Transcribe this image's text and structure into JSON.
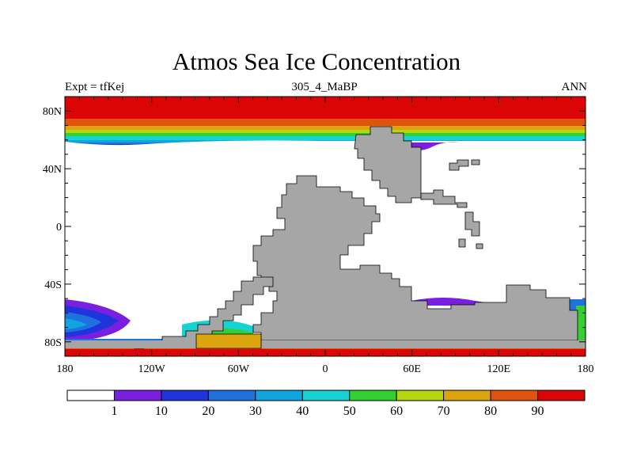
{
  "title": "Atmos Sea Ice Concentration",
  "subtitle": "305_4_MaBP",
  "experiment": "Expt = tfKej",
  "period": "ANN",
  "map": {
    "lon_range": [
      -180,
      180
    ],
    "lat_range": [
      -90,
      90
    ],
    "lon_ticks": [
      {
        "value": -180,
        "label": "180"
      },
      {
        "value": -120,
        "label": "120W"
      },
      {
        "value": -60,
        "label": "60W"
      },
      {
        "value": 0,
        "label": "0"
      },
      {
        "value": 60,
        "label": "60E"
      },
      {
        "value": 120,
        "label": "120E"
      },
      {
        "value": 180,
        "label": "180"
      }
    ],
    "lat_ticks": [
      {
        "value": 80,
        "label": "80N"
      },
      {
        "value": 40,
        "label": "40N"
      },
      {
        "value": 0,
        "label": "0"
      },
      {
        "value": -40,
        "label": "40S"
      },
      {
        "value": -80,
        "label": "80S"
      }
    ],
    "land_color": "#a6a6a6",
    "land_outline": "#000000"
  },
  "colorbar": {
    "colors": [
      "#ffffff",
      "#7a1fe0",
      "#1f34dd",
      "#1f72dd",
      "#0fa5e0",
      "#17d2d2",
      "#33cf33",
      "#b4d70f",
      "#dca50f",
      "#e0530f",
      "#dc0505"
    ],
    "labels": [
      "1",
      "10",
      "20",
      "30",
      "40",
      "50",
      "60",
      "70",
      "80",
      "90"
    ]
  }
}
